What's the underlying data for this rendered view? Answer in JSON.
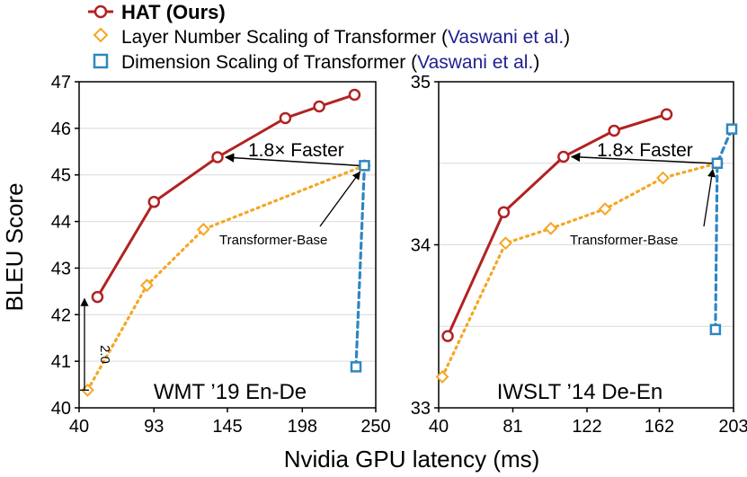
{
  "legend": {
    "hat": "HAT (Ours)",
    "layer": "Layer Number Scaling of Transformer (",
    "layer_cite": "Vaswani et al.",
    "dim": "Dimension Scaling of Transformer (",
    "dim_cite": "Vaswani et al.",
    "close_paren": ")"
  },
  "colors": {
    "hat": "#b22222",
    "layer": "#f5a623",
    "dim": "#2e86c1",
    "cite": "#1f1f8f",
    "grid": "#d9d9d9",
    "axis": "#000000"
  },
  "shared": {
    "xlabel": "Nvidia GPU latency (ms)",
    "ylabel": "BLEU Score"
  },
  "chart_data": [
    {
      "type": "line",
      "title": "WMT ’19 En-De",
      "xlabel": "Nvidia GPU latency (ms)",
      "ylabel": "BLEU Score",
      "xlim": [
        40,
        250
      ],
      "ylim": [
        40,
        47
      ],
      "xticks": [
        40,
        93,
        145,
        198,
        250
      ],
      "yticks": [
        40,
        41,
        42,
        43,
        44,
        45,
        46,
        47
      ],
      "series": [
        {
          "name": "HAT (Ours)",
          "x": [
            53,
            93,
            138,
            186,
            210,
            235
          ],
          "y": [
            42.38,
            44.42,
            45.38,
            46.22,
            46.47,
            46.72
          ]
        },
        {
          "name": "Layer Number Scaling of Transformer",
          "x": [
            46,
            88,
            128,
            242
          ],
          "y": [
            40.38,
            42.63,
            43.83,
            45.2
          ]
        },
        {
          "name": "Dimension Scaling of Transformer",
          "x": [
            236,
            242
          ],
          "y": [
            40.88,
            45.2
          ]
        }
      ],
      "speedup_label": "1.8× Faster",
      "baseline_label": "Transformer-Base",
      "gap_label": "2.0"
    },
    {
      "type": "line",
      "title": "IWSLT ’14 De-En",
      "xlabel": "Nvidia GPU latency (ms)",
      "ylabel": "",
      "xlim": [
        40,
        203
      ],
      "ylim": [
        33,
        35
      ],
      "xticks": [
        40,
        81,
        122,
        162,
        203
      ],
      "yticks": [
        33,
        34,
        35
      ],
      "series": [
        {
          "name": "HAT (Ours)",
          "x": [
            45,
            76,
            109,
            137,
            166
          ],
          "y": [
            33.44,
            34.2,
            34.54,
            34.7,
            34.8
          ]
        },
        {
          "name": "Layer Number Scaling of Transformer",
          "x": [
            42,
            77,
            102,
            132,
            164,
            194
          ],
          "y": [
            33.19,
            34.01,
            34.1,
            34.22,
            34.41,
            34.5
          ]
        },
        {
          "name": "Dimension Scaling of Transformer",
          "x": [
            193,
            194,
            202
          ],
          "y": [
            33.48,
            34.5,
            34.71
          ]
        }
      ],
      "speedup_label": "1.8× Faster",
      "baseline_label": "Transformer-Base"
    }
  ]
}
